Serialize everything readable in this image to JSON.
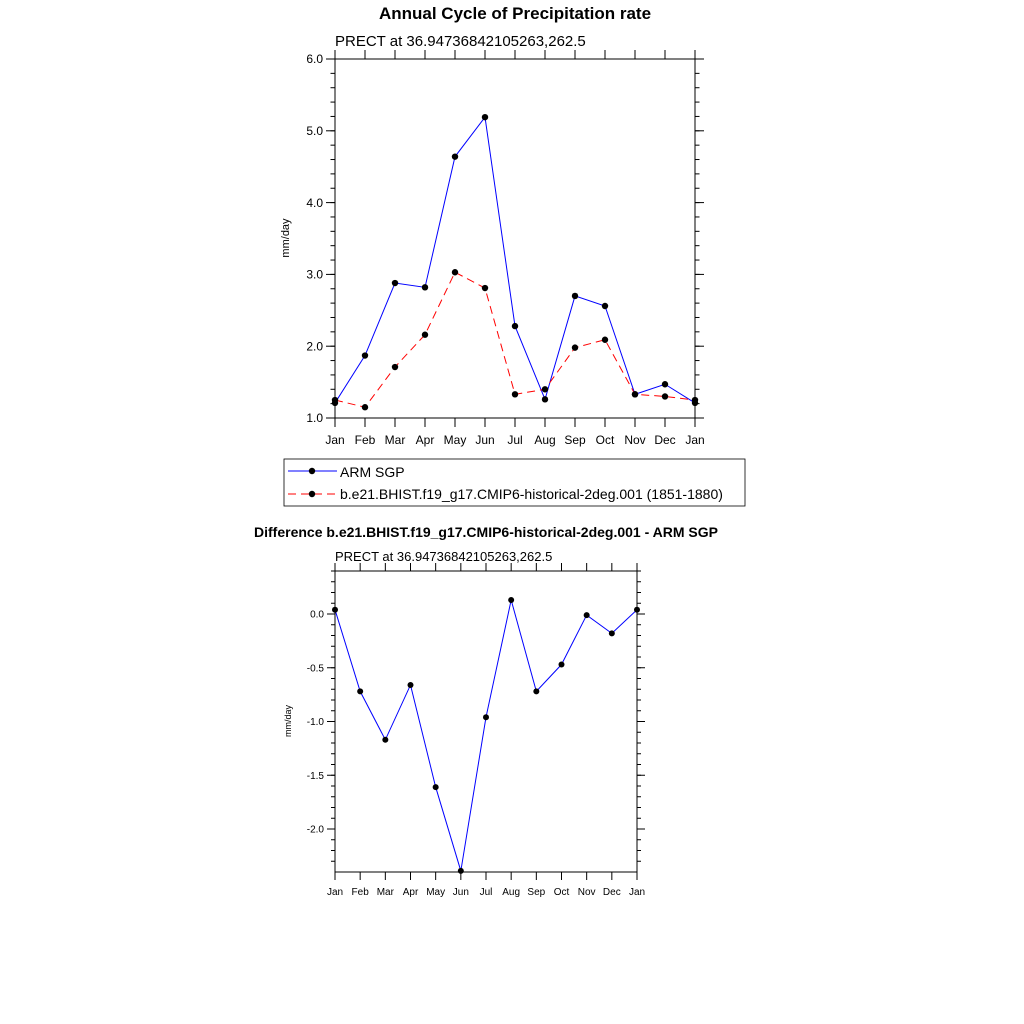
{
  "chart_data": [
    {
      "type": "line",
      "title": "Annual Cycle of Precipitation rate",
      "subtitle": "PRECT at 36.94736842105263,262.5",
      "xlabel": "",
      "ylabel": "mm/day",
      "categories": [
        "Jan",
        "Feb",
        "Mar",
        "Apr",
        "May",
        "Jun",
        "Jul",
        "Aug",
        "Sep",
        "Oct",
        "Nov",
        "Dec",
        "Jan"
      ],
      "ylim": [
        1.0,
        6.0
      ],
      "yticks": [
        1.0,
        2.0,
        3.0,
        4.0,
        5.0,
        6.0
      ],
      "ytick_labels": [
        "1.0",
        "2.0",
        "3.0",
        "4.0",
        "5.0",
        "6.0"
      ],
      "grid": false,
      "legend_position": "bottom",
      "series": [
        {
          "name": "ARM SGP",
          "color": "#0000ff",
          "dash": "solid",
          "values": [
            1.21,
            1.87,
            2.88,
            2.82,
            4.64,
            5.19,
            2.28,
            1.26,
            2.7,
            2.56,
            1.33,
            1.47,
            1.21
          ]
        },
        {
          "name": "b.e21.BHIST.f19_g17.CMIP6-historical-2deg.001 (1851-1880)",
          "color": "#ff0000",
          "dash": "dashed",
          "values": [
            1.25,
            1.15,
            1.71,
            2.16,
            3.03,
            2.81,
            1.33,
            1.4,
            1.98,
            2.09,
            1.33,
            1.3,
            1.25
          ]
        }
      ]
    },
    {
      "type": "line",
      "title": "Difference b.e21.BHIST.f19_g17.CMIP6-historical-2deg.001 - ARM SGP",
      "subtitle": "PRECT at 36.94736842105263,262.5",
      "xlabel": "",
      "ylabel": "mm/day",
      "categories": [
        "Jan",
        "Feb",
        "Mar",
        "Apr",
        "May",
        "Jun",
        "Jul",
        "Aug",
        "Sep",
        "Oct",
        "Nov",
        "Dec",
        "Jan"
      ],
      "ylim": [
        -2.4,
        0.4
      ],
      "yticks": [
        -2.0,
        -1.5,
        -1.0,
        -0.5,
        0.0
      ],
      "ytick_labels": [
        "-2.0",
        "-1.5",
        "-1.0",
        "-0.5",
        "0.0"
      ],
      "grid": false,
      "series": [
        {
          "name": "Difference",
          "color": "#0000ff",
          "dash": "solid",
          "values": [
            0.04,
            -0.72,
            -1.17,
            -0.66,
            -1.61,
            -2.39,
            -0.96,
            0.13,
            -0.72,
            -0.47,
            -0.01,
            -0.18,
            0.04
          ]
        }
      ]
    }
  ]
}
